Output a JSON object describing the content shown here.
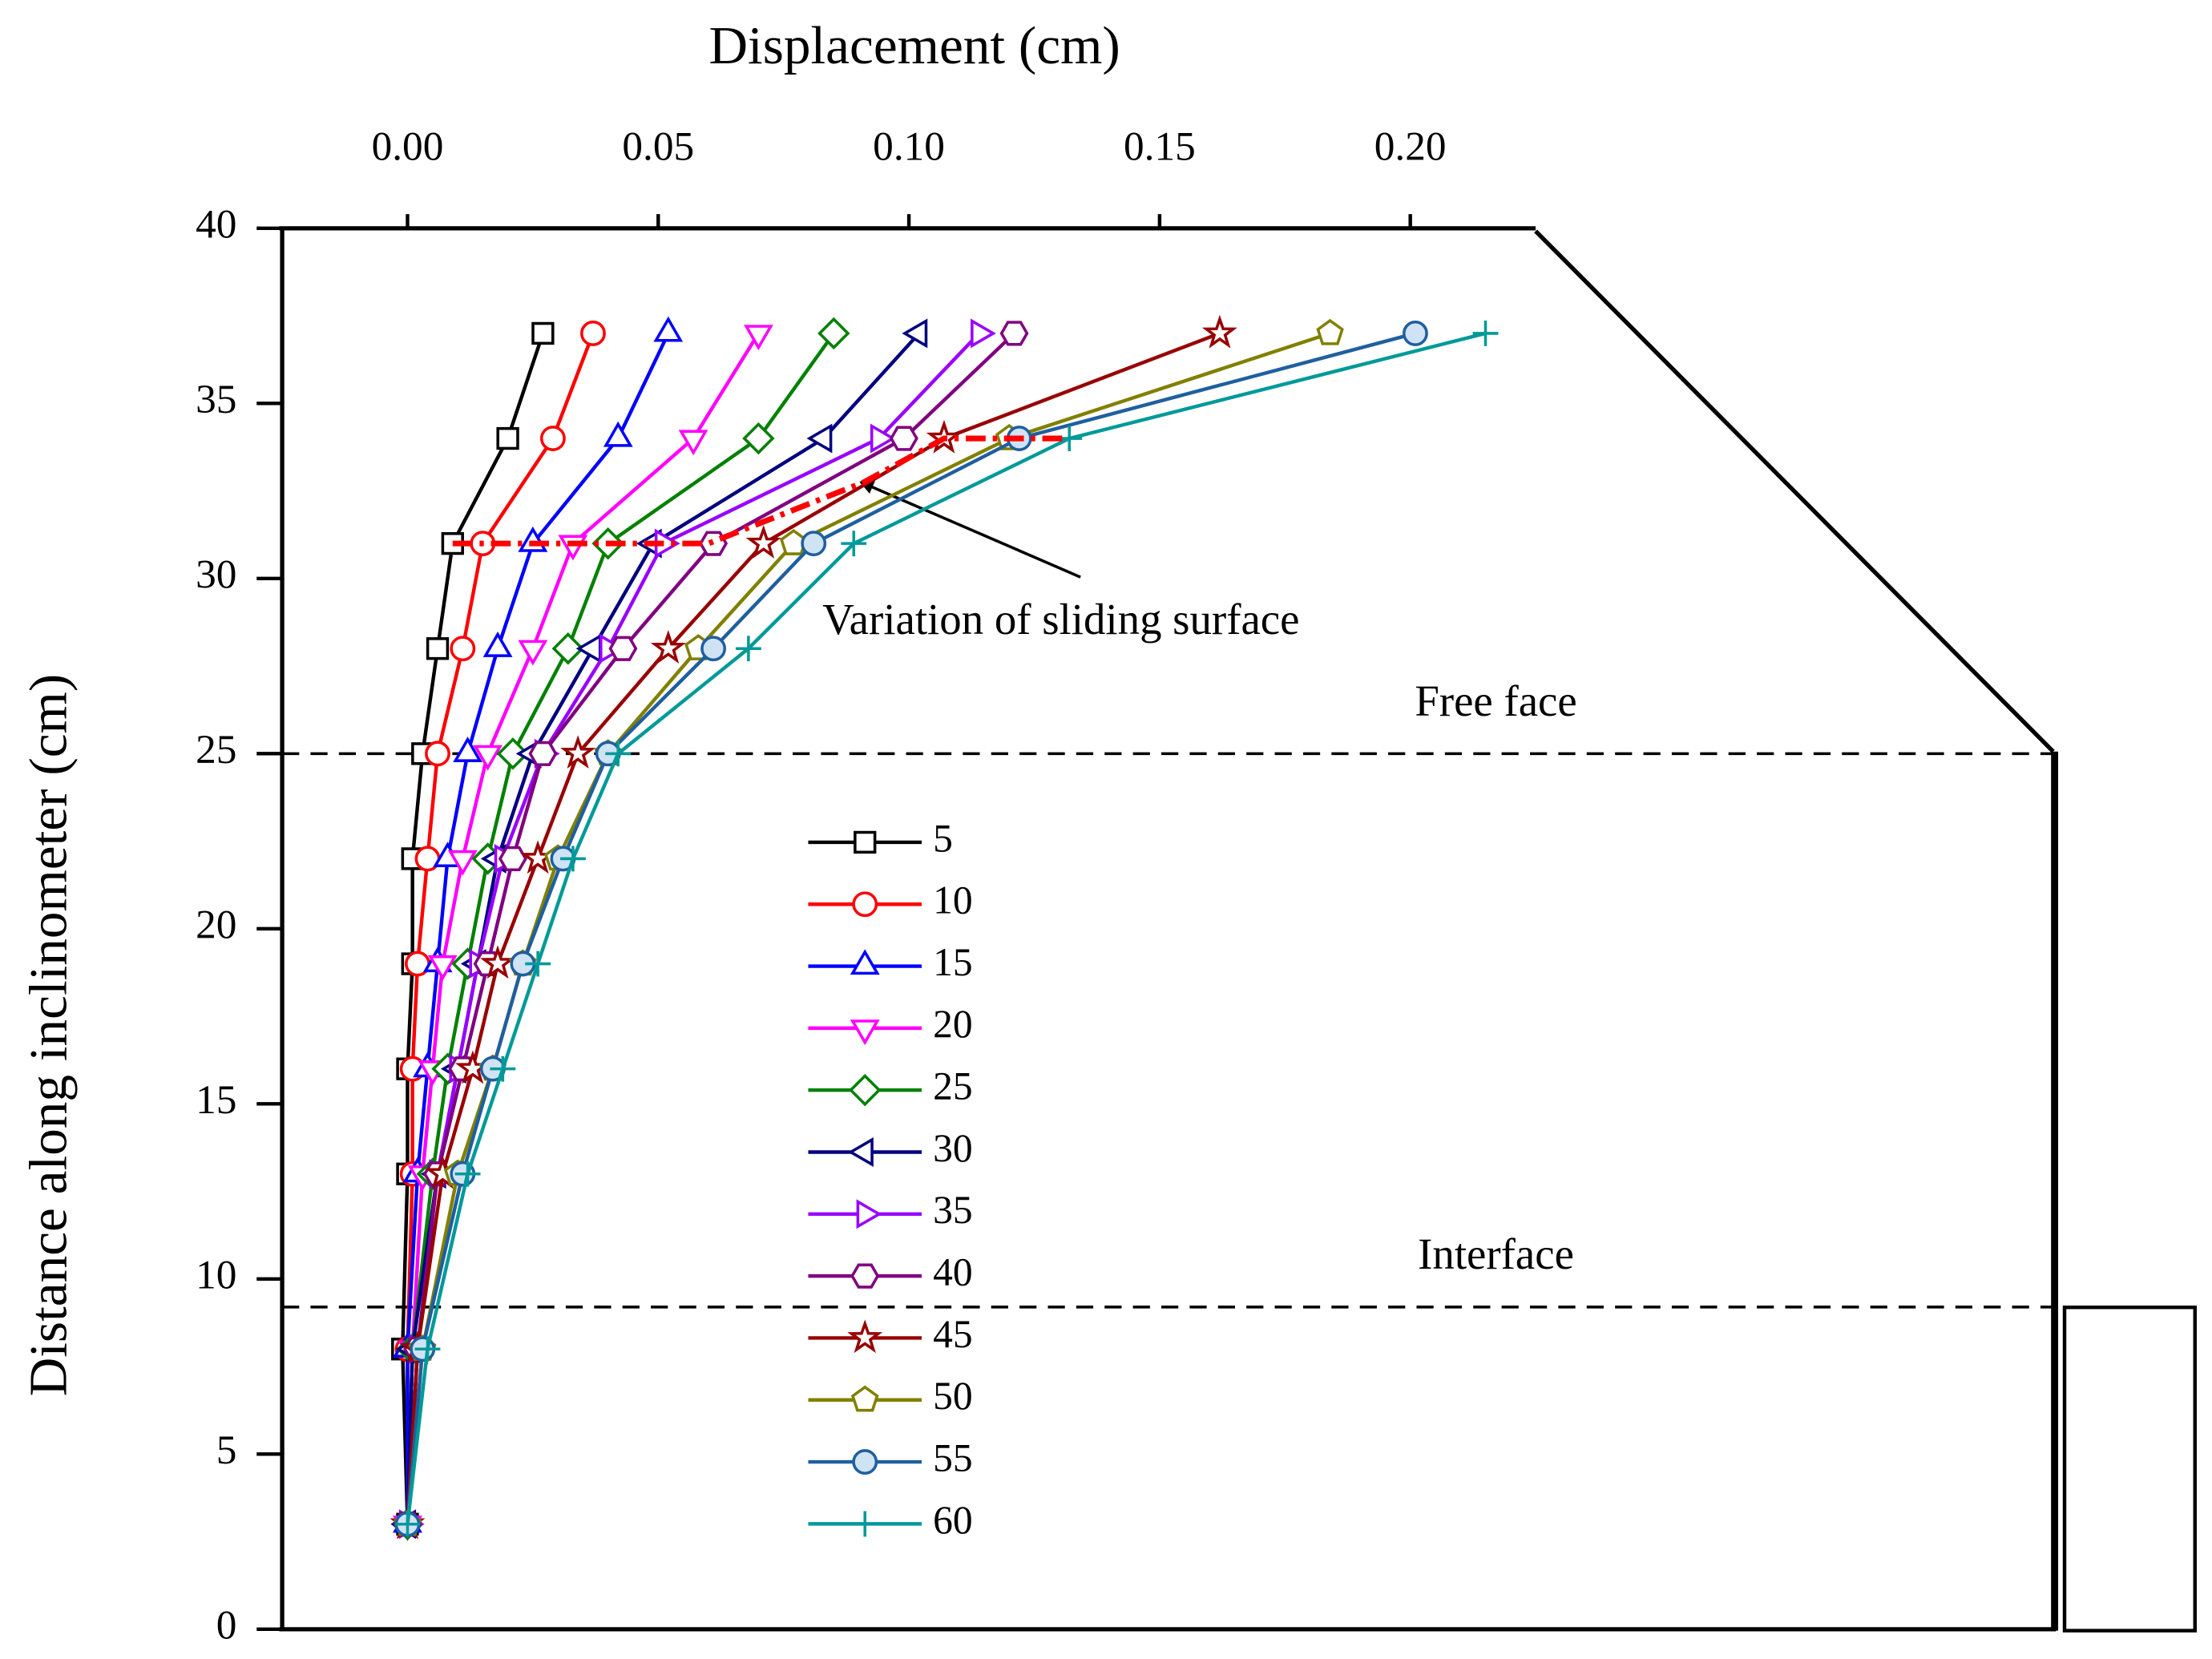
{
  "chart_data": {
    "type": "line",
    "xlabel": "Displacement (cm)",
    "ylabel": "Distance along inclinometer (cm)",
    "xlim": [
      -0.025,
      0.225
    ],
    "xticks": [
      {
        "value": 0,
        "label": "0.00"
      },
      {
        "value": 0.05,
        "label": "0.05"
      },
      {
        "value": 0.1,
        "label": "0.10"
      },
      {
        "value": 0.15,
        "label": "0.15"
      },
      {
        "value": 0.2,
        "label": "0.20"
      }
    ],
    "ylim": [
      0,
      40
    ],
    "yticks": [
      0,
      5,
      10,
      15,
      20,
      25,
      30,
      35,
      40
    ],
    "y": [
      3,
      8,
      13,
      16,
      19,
      22,
      25,
      28,
      31,
      34,
      37
    ],
    "series": [
      {
        "name": "5",
        "color": "#000000",
        "marker": "square",
        "values": [
          0,
          -0.001,
          0,
          0,
          0.001,
          0.001,
          0.003,
          0.006,
          0.009,
          0.02,
          0.027
        ]
      },
      {
        "name": "10",
        "color": "#ff0000",
        "marker": "circle",
        "values": [
          0,
          0,
          0.001,
          0.001,
          0.002,
          0.004,
          0.006,
          0.011,
          0.015,
          0.029,
          0.037
        ]
      },
      {
        "name": "15",
        "color": "#0000ff",
        "marker": "triangle-up",
        "values": [
          0,
          0,
          0.002,
          0.004,
          0.006,
          0.008,
          0.012,
          0.018,
          0.025,
          0.042,
          0.052
        ]
      },
      {
        "name": "20",
        "color": "#ff00ff",
        "marker": "triangle-down",
        "values": [
          0,
          0.001,
          0.003,
          0.005,
          0.007,
          0.011,
          0.016,
          0.025,
          0.033,
          0.057,
          0.07
        ]
      },
      {
        "name": "25",
        "color": "#008000",
        "marker": "diamond",
        "values": [
          0,
          0.001,
          0.005,
          0.008,
          0.012,
          0.016,
          0.021,
          0.032,
          0.04,
          0.07,
          0.085
        ]
      },
      {
        "name": "30",
        "color": "#000080",
        "marker": "triangle-left",
        "values": [
          0,
          0.001,
          0.006,
          0.01,
          0.014,
          0.018,
          0.025,
          0.037,
          0.049,
          0.083,
          0.102
        ]
      },
      {
        "name": "35",
        "color": "#9900ff",
        "marker": "triangle-right",
        "values": [
          0,
          0.002,
          0.006,
          0.01,
          0.014,
          0.019,
          0.027,
          0.04,
          0.051,
          0.094,
          0.114
        ]
      },
      {
        "name": "40",
        "color": "#800080",
        "marker": "hexagon",
        "values": [
          0,
          0.002,
          0.006,
          0.011,
          0.016,
          0.021,
          0.027,
          0.043,
          0.061,
          0.099,
          0.121
        ]
      },
      {
        "name": "45",
        "color": "#990000",
        "marker": "star",
        "values": [
          0,
          0.002,
          0.007,
          0.013,
          0.018,
          0.026,
          0.034,
          0.052,
          0.071,
          0.107,
          0.162
        ]
      },
      {
        "name": "50",
        "color": "#808000",
        "marker": "pentagon",
        "values": [
          0,
          0.003,
          0.01,
          0.017,
          0.023,
          0.03,
          0.04,
          0.058,
          0.077,
          0.12,
          0.184
        ]
      },
      {
        "name": "55",
        "color": "#1f5f9f",
        "marker": "ball",
        "values": [
          0,
          0.003,
          0.011,
          0.017,
          0.023,
          0.031,
          0.04,
          0.061,
          0.081,
          0.122,
          0.201
        ]
      },
      {
        "name": "60",
        "color": "#009999",
        "marker": "plus",
        "values": [
          0,
          0.004,
          0.012,
          0.019,
          0.026,
          0.033,
          0.042,
          0.068,
          0.089,
          0.132,
          0.215
        ]
      }
    ],
    "sliding_surface": {
      "color": "#ff0000",
      "x": [
        0.009,
        0.06,
        0.091,
        0.107,
        0.131
      ],
      "y": [
        31,
        31,
        32.75,
        34,
        34
      ]
    },
    "annotation": {
      "text": "Variation of sliding surface"
    },
    "reference_lines": [
      {
        "label": "Free face",
        "y": 25
      },
      {
        "label": "Interface",
        "y": 9.2
      }
    ]
  }
}
